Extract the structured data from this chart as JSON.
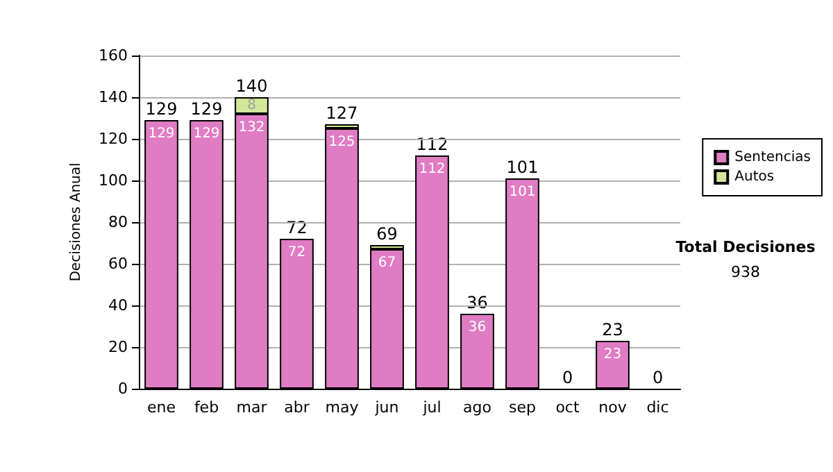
{
  "chart_data": {
    "type": "bar",
    "ylabel": "Decisiones Anual",
    "categories": [
      "ene",
      "feb",
      "mar",
      "abr",
      "may",
      "jun",
      "jul",
      "ago",
      "sep",
      "oct",
      "nov",
      "dic"
    ],
    "stacked": true,
    "series": [
      {
        "name": "Sentencias",
        "color": "#e07cc4",
        "values": [
          129,
          129,
          132,
          72,
          125,
          67,
          112,
          36,
          101,
          0,
          23,
          0
        ],
        "value_labels": [
          "129",
          "129",
          "132",
          "72",
          "125",
          "67",
          "112",
          "36",
          "101",
          null,
          "23",
          null
        ]
      },
      {
        "name": "Autos",
        "color": "#d2e79a",
        "values": [
          0,
          0,
          8,
          0,
          2,
          2,
          0,
          0,
          0,
          0,
          0,
          0
        ],
        "value_labels": [
          null,
          null,
          "8",
          null,
          null,
          null,
          null,
          null,
          null,
          null,
          null,
          null
        ]
      }
    ],
    "totals": [
      "129",
      "129",
      "140",
      "72",
      "127",
      "69",
      "112",
      "36",
      "101",
      "0",
      "23",
      "0"
    ],
    "ylim": [
      0,
      160
    ],
    "yticks": [
      0,
      20,
      40,
      60,
      80,
      100,
      120,
      140,
      160
    ],
    "grid": "y",
    "legend": "right",
    "annotations": [
      "Total Decisiones",
      "938"
    ]
  }
}
